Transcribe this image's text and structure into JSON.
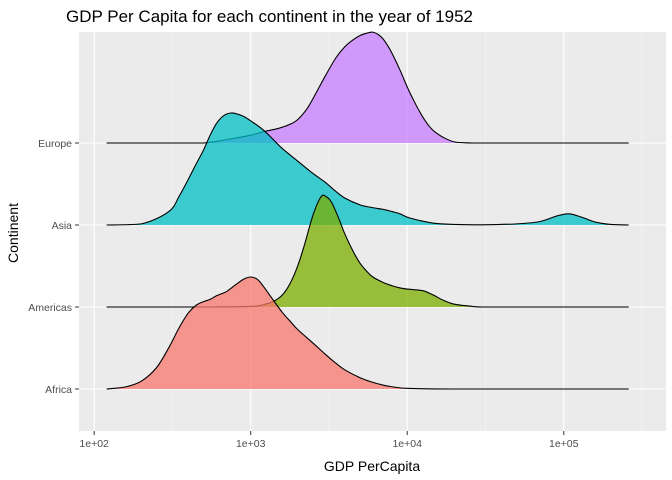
{
  "chart_data": {
    "type": "ridgeline",
    "title": "GDP Per Capita for each continent in the year of 1952",
    "xlabel": "GDP PerCapita",
    "ylabel": "Continent",
    "x_scale": "log10",
    "xlim": [
      80,
      450000
    ],
    "x_ticks": [
      100,
      1000,
      10000,
      100000
    ],
    "x_tick_labels": [
      "1e+02",
      "1e+03",
      "1e+04",
      "1e+05"
    ],
    "categories": [
      "Africa",
      "Americas",
      "Asia",
      "Europe"
    ],
    "grid": true,
    "legend": "none",
    "series": [
      {
        "name": "Africa",
        "color": "#F8766D",
        "x": [
          120,
          160,
          200,
          250,
          300,
          350,
          400,
          450,
          500,
          550,
          600,
          650,
          700,
          800,
          900,
          1000,
          1100,
          1200,
          1400,
          1600,
          1800,
          2000,
          2500,
          3000,
          3500,
          4000,
          5000,
          6000,
          7000,
          8000,
          9000,
          10000,
          12000,
          15000,
          20000,
          30000,
          50000,
          100000,
          200000,
          260000
        ],
        "density": [
          0.0,
          0.02,
          0.07,
          0.19,
          0.37,
          0.55,
          0.68,
          0.75,
          0.78,
          0.8,
          0.83,
          0.85,
          0.87,
          0.93,
          0.98,
          1.0,
          0.98,
          0.92,
          0.79,
          0.68,
          0.6,
          0.53,
          0.41,
          0.31,
          0.23,
          0.17,
          0.1,
          0.06,
          0.035,
          0.02,
          0.01,
          0.006,
          0.003,
          0.001,
          0.0,
          0.0,
          0.0,
          0.0,
          0.0,
          0.0
        ]
      },
      {
        "name": "Americas",
        "color": "#7CAE00",
        "x": [
          120,
          200,
          500,
          1000,
          1200,
          1400,
          1600,
          1800,
          2000,
          2200,
          2500,
          2800,
          3000,
          3300,
          3700,
          4000,
          4500,
          5000,
          5500,
          6000,
          7000,
          8000,
          9000,
          10000,
          11000,
          12000,
          13000,
          14000,
          15000,
          17000,
          20000,
          25000,
          30000,
          50000,
          100000,
          200000,
          260000
        ],
        "density": [
          0.0,
          0.0,
          0.0,
          0.005,
          0.02,
          0.05,
          0.11,
          0.22,
          0.37,
          0.55,
          0.82,
          0.98,
          0.99,
          0.93,
          0.77,
          0.65,
          0.5,
          0.39,
          0.32,
          0.27,
          0.22,
          0.19,
          0.17,
          0.16,
          0.155,
          0.15,
          0.14,
          0.12,
          0.1,
          0.06,
          0.025,
          0.008,
          0.0,
          0.0,
          0.0,
          0.0,
          0.0
        ]
      },
      {
        "name": "Asia",
        "color": "#00BFC4",
        "x": [
          120,
          200,
          300,
          350,
          400,
          450,
          500,
          550,
          600,
          650,
          700,
          750,
          800,
          900,
          1000,
          1200,
          1400,
          1600,
          2000,
          2500,
          3000,
          3500,
          4000,
          5000,
          6000,
          7000,
          8000,
          9000,
          10000,
          12000,
          15000,
          20000,
          30000,
          50000,
          70000,
          90000,
          108000,
          130000,
          160000,
          200000,
          260000
        ],
        "density": [
          0.0,
          0.01,
          0.12,
          0.26,
          0.41,
          0.55,
          0.67,
          0.8,
          0.9,
          0.96,
          0.99,
          1.0,
          0.995,
          0.97,
          0.93,
          0.85,
          0.76,
          0.68,
          0.57,
          0.46,
          0.38,
          0.3,
          0.24,
          0.18,
          0.155,
          0.14,
          0.12,
          0.1,
          0.07,
          0.04,
          0.015,
          0.005,
          0.002,
          0.01,
          0.03,
          0.08,
          0.1,
          0.07,
          0.025,
          0.005,
          0.0
        ]
      },
      {
        "name": "Europe",
        "color": "#C77CFF",
        "x": [
          120,
          300,
          500,
          700,
          1000,
          1200,
          1500,
          1800,
          2000,
          2300,
          2600,
          3000,
          3500,
          4000,
          4500,
          5000,
          5500,
          6000,
          6500,
          7000,
          7500,
          8000,
          9000,
          10000,
          11000,
          12000,
          13000,
          14000,
          15000,
          17000,
          20000,
          25000,
          30000,
          50000,
          100000,
          200000,
          260000
        ],
        "density": [
          0.0,
          0.0,
          0.0,
          0.03,
          0.07,
          0.1,
          0.13,
          0.17,
          0.21,
          0.31,
          0.44,
          0.6,
          0.76,
          0.86,
          0.92,
          0.96,
          0.98,
          0.99,
          0.97,
          0.93,
          0.87,
          0.8,
          0.65,
          0.5,
          0.38,
          0.28,
          0.2,
          0.14,
          0.1,
          0.05,
          0.01,
          0.001,
          0.0,
          0.0,
          0.0,
          0.0,
          0.0
        ]
      }
    ]
  }
}
